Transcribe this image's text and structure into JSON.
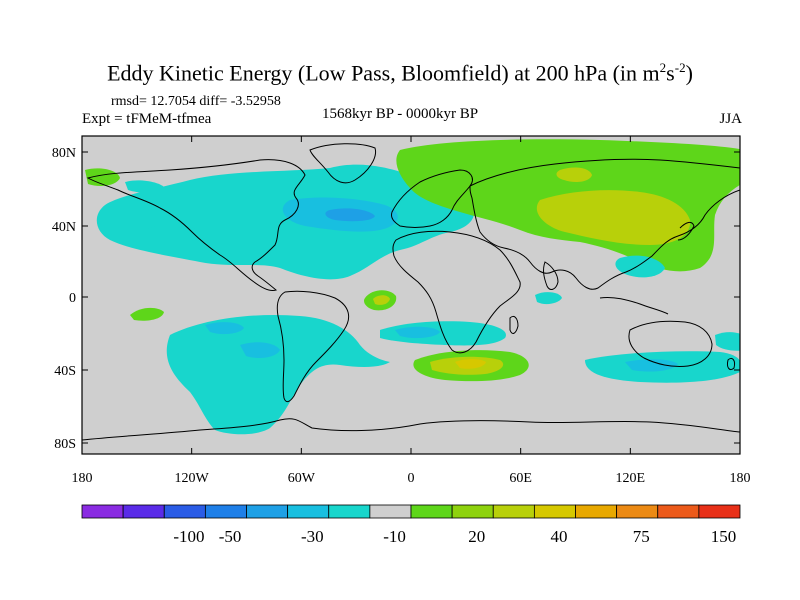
{
  "title": {
    "main": "Eddy Kinetic Energy (Low Pass, Bloomfield) at 200 hPa (in m",
    "sup1": "2",
    "mid": "s",
    "sup2": "-2",
    "end": ")"
  },
  "stats": "rmsd= 12.7054 diff= -3.52958",
  "experiment": "Expt = tFMeM-tfmea",
  "period": "1568kyr BP - 0000kyr BP",
  "season": "JJA",
  "axes": {
    "x_ticks": [
      "180",
      "120W",
      "60W",
      "0",
      "60E",
      "120E",
      "180"
    ],
    "y_ticks": [
      "80N",
      "40N",
      "0",
      "40S",
      "80S"
    ]
  },
  "colorbar": {
    "colors": [
      "#8a2be2",
      "#5a2be8",
      "#2a5ce6",
      "#1e7fe8",
      "#1ea0e6",
      "#18bfe0",
      "#18d6cc",
      "#cfcfcf",
      "#5ed61a",
      "#8ed20e",
      "#b8d00a",
      "#d6c800",
      "#e8a800",
      "#ec8a14",
      "#ec5a1a",
      "#e83018"
    ],
    "labels": [
      "-100",
      "-50",
      "-30",
      "-10",
      "20",
      "40",
      "75",
      "150"
    ]
  },
  "palette": {
    "background_land": "#cfcfcf",
    "light_green": "#5ed61a",
    "yellow_green": "#b8d00a",
    "cyan": "#18d6cc",
    "light_blue": "#18bfe0",
    "mid_blue": "#1ea0e6",
    "yellow": "#d6c800"
  }
}
